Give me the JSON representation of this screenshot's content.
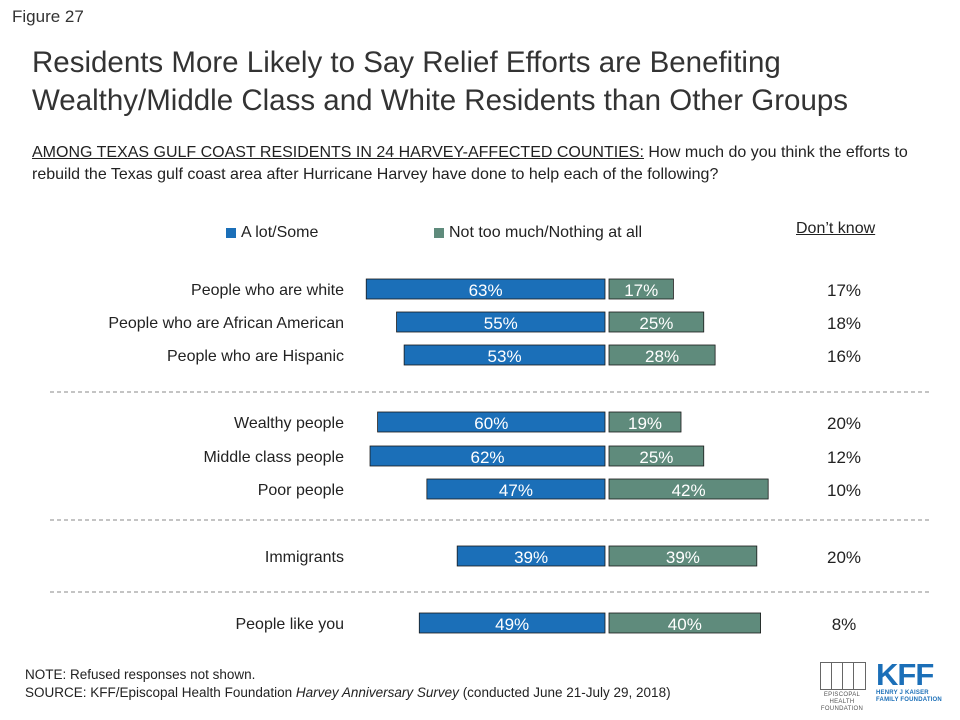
{
  "figure_label": "Figure 27",
  "title": "Residents More Likely to Say Relief Efforts are Benefiting Wealthy/Middle Class and White Residents than Other Groups",
  "question": {
    "lead": "AMONG TEXAS GULF COAST RESIDENTS IN 24 HARVEY-AFFECTED COUNTIES:",
    "text": " How much do you think the efforts to rebuild the Texas gulf coast area after Hurricane Harvey have done to help each of the following?"
  },
  "colors": {
    "alot": "#1b6fb8",
    "notmuch": "#5f8b7c",
    "divider": "#888888"
  },
  "legend": {
    "alot": "A lot/Some",
    "notmuch": "Not too much/Nothing at all"
  },
  "dont_know_header": "Don’t know",
  "chart_data": {
    "type": "bar",
    "orientation": "horizontal-diverging",
    "categories": [
      "People who are white",
      "People who are African American",
      "People who are Hispanic",
      "Wealthy people",
      "Middle class people",
      "Poor people",
      "Immigrants",
      "People like you"
    ],
    "series": [
      {
        "name": "A lot/Some",
        "values": [
          63,
          55,
          53,
          60,
          62,
          47,
          39,
          49
        ],
        "labels": [
          "63%",
          "55%",
          "53%",
          "60%",
          "62%",
          "47%",
          "39%",
          "49%"
        ]
      },
      {
        "name": "Not too much/Nothing at all",
        "values": [
          17,
          25,
          28,
          19,
          25,
          42,
          39,
          40
        ],
        "labels": [
          "17%",
          "25%",
          "28%",
          "19%",
          "25%",
          "42%",
          "39%",
          "40%"
        ]
      }
    ],
    "dont_know": [
      "17%",
      "18%",
      "16%",
      "20%",
      "12%",
      "10%",
      "20%",
      "8%"
    ],
    "groups": [
      [
        0,
        1,
        2
      ],
      [
        3,
        4,
        5
      ],
      [
        6
      ],
      [
        7
      ]
    ],
    "unit": "%"
  },
  "note": "NOTE: Refused responses not shown.",
  "source": {
    "prefix": "SOURCE: KFF/Episcopal Health Foundation ",
    "title": "Harvey Anniversary Survey",
    "suffix": " (conducted June 21-July 29, 2018)"
  },
  "logos": {
    "ehf": "EPISCOPAL HEALTH FOUNDATION",
    "kff_mark": "KFF",
    "kff": "HENRY J KAISER FAMILY FOUNDATION"
  }
}
